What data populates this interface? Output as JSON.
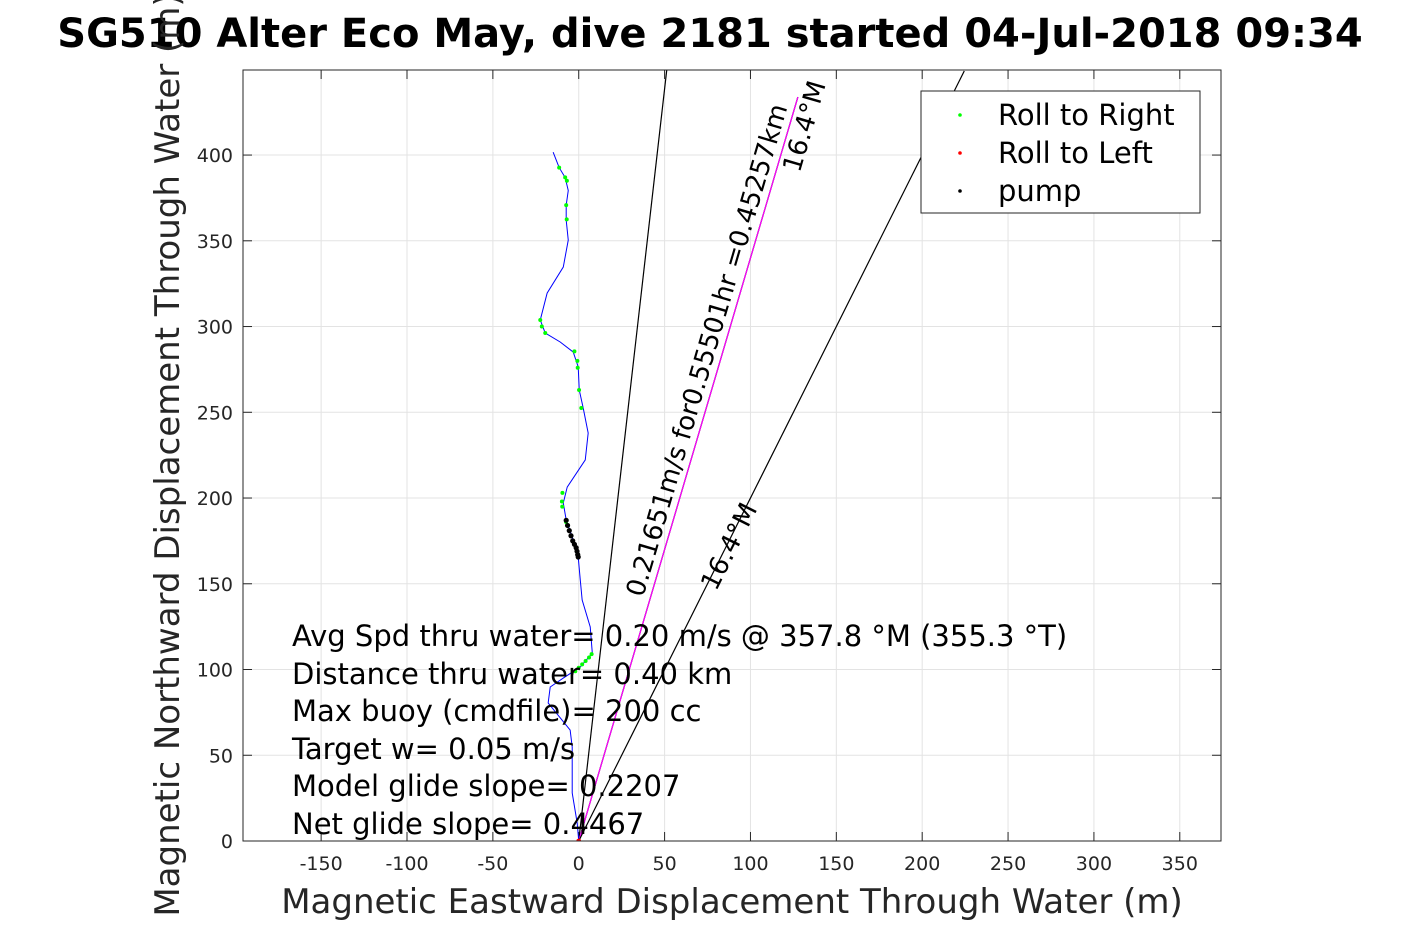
{
  "chart_data": {
    "type": "line",
    "title": "SG510 Alter Eco May, dive 2181 started 04-Jul-2018 09:34",
    "xlabel": "Magnetic Eastward Displacement Through Water (m)",
    "ylabel": "Magnetic Northward Displacement Through Water (m)",
    "xlim": [
      -195.5,
      374
    ],
    "ylim": [
      0,
      449.6
    ],
    "grid": true,
    "xticks": [
      -150,
      -100,
      -50,
      0,
      50,
      100,
      150,
      200,
      250,
      300,
      350
    ],
    "yticks": [
      0,
      50,
      100,
      150,
      200,
      250,
      300,
      350,
      400
    ],
    "legend": {
      "placement": "top-right",
      "entries": [
        {
          "label": "Roll to Right",
          "color": "#00ff00"
        },
        {
          "label": "Roll to Left",
          "color": "#ff0000"
        },
        {
          "label": "pump",
          "color": "#000000"
        }
      ]
    },
    "track": {
      "name": "glider track",
      "color": "#0000ff",
      "x": [
        0,
        -0.9,
        -3.8,
        -3.8,
        -5.0,
        -17.8,
        -16.6,
        -9.0,
        0.9,
        7.9,
        6.7,
        2.0,
        0.9,
        -0.3,
        -3.8,
        -7.3,
        -9.0,
        -6.7,
        3.8,
        5.5,
        2.6,
        0.3,
        -0.3,
        -3.2,
        -10.8,
        -19.5,
        -22.4,
        -18.4,
        -9.0,
        -6.1,
        -7.3,
        -7.3,
        -6.1,
        -7.9,
        -11.4,
        -14.9
      ],
      "y": [
        0,
        10.5,
        28.0,
        54.8,
        64.7,
        80.5,
        89.8,
        95.0,
        101.5,
        109.6,
        124.8,
        140.5,
        152.2,
        165.6,
        177.3,
        187.2,
        197.1,
        206.4,
        222.2,
        237.9,
        252.5,
        263.0,
        276.4,
        285.1,
        291.0,
        296.2,
        303.8,
        319.5,
        334.7,
        350.4,
        362.1,
        370.8,
        379.3,
        386.9,
        392.7,
        401.7
      ]
    },
    "roll_right_points": {
      "x": [
        -11.4,
        -7.9,
        -6.9,
        -7.3,
        -7.0,
        -22.4,
        -21.5,
        -19.5,
        -2.5,
        -0.8,
        -0.6,
        0.2,
        1.5,
        -9.5,
        -9.8,
        -9.6,
        -7.4,
        -2,
        0,
        2,
        4,
        6,
        7.5
      ],
      "y": [
        392.7,
        387,
        385,
        370.8,
        362.5,
        303.8,
        300,
        296.2,
        285.5,
        280,
        276,
        263,
        252.5,
        203,
        198,
        195,
        186,
        99,
        101,
        103,
        105,
        107,
        109
      ]
    },
    "roll_left_points": {
      "x": [
        0
      ],
      "y": [
        0
      ]
    },
    "pump_points": {
      "x": [
        -7.3,
        -6.5,
        -5.5,
        -4.5,
        -3.5,
        -2.5,
        -1.5,
        -1,
        -0.6,
        -0.3
      ],
      "y": [
        187,
        184,
        181,
        178,
        175,
        173,
        171,
        169,
        167,
        165.6
      ]
    },
    "lines": [
      {
        "name": "heading-line-1",
        "color": "#000000",
        "x": [
          0,
          51.3
        ],
        "y": [
          0,
          450
        ]
      },
      {
        "name": "heading-line-2",
        "color": "#000000",
        "x": [
          0,
          127.6
        ],
        "y": [
          0,
          433.8
        ]
      },
      {
        "name": "net-displacement-line",
        "color": "#ff00ff",
        "x": [
          0,
          127.6
        ],
        "y": [
          0,
          433.8
        ]
      },
      {
        "name": "heading-line-3",
        "color": "#000000",
        "x": [
          0,
          224.5
        ],
        "y": [
          0,
          449
        ]
      }
    ],
    "annotations": {
      "summary": [
        "Avg Spd thru water= 0.20 m/s @ 357.8 °M (355.3 °T)",
        "Distance thru water= 0.40 km",
        "Max buoy (cmdfile)= 200 cc",
        "Target w= 0.05 m/s",
        "Model glide slope= 0.2207",
        "Net glide slope= 0.4467"
      ],
      "vector_label_line1": "0.21651m/s for0.55501hr =0.45257km",
      "vector_label_line2": "16.4°M",
      "heading_label": "16.4°M"
    }
  }
}
